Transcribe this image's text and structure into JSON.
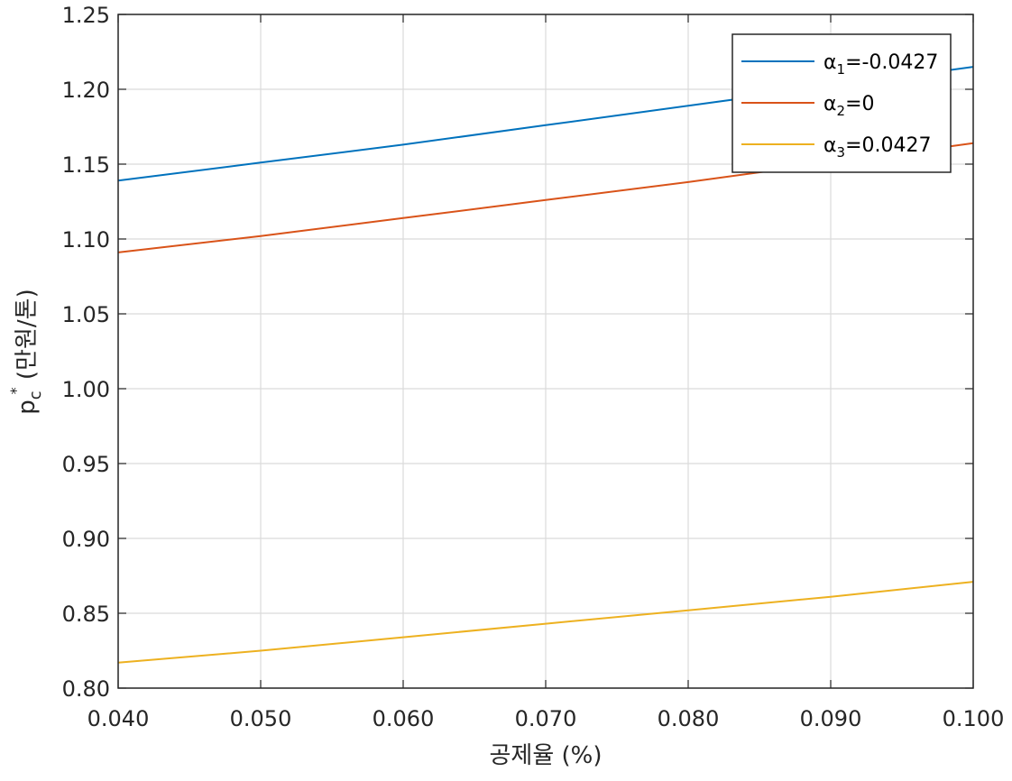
{
  "chart_data": {
    "type": "line",
    "xlabel": "공제율 (%)",
    "ylabel": {
      "main": "p",
      "sup": "*",
      "sub": "c",
      "unit": " (만원/톤)"
    },
    "xlim": [
      0.04,
      0.1
    ],
    "ylim": [
      0.8,
      1.25
    ],
    "xticks": [
      0.04,
      0.05,
      0.06,
      0.07,
      0.08,
      0.09,
      0.1
    ],
    "xtick_labels": [
      "0.040",
      "0.050",
      "0.060",
      "0.070",
      "0.080",
      "0.090",
      "0.100"
    ],
    "yticks": [
      0.8,
      0.85,
      0.9,
      0.95,
      1.0,
      1.05,
      1.1,
      1.15,
      1.2,
      1.25
    ],
    "ytick_labels": [
      "0.80",
      "0.85",
      "0.90",
      "0.95",
      "1.00",
      "1.05",
      "1.10",
      "1.15",
      "1.20",
      "1.25"
    ],
    "grid": true,
    "legend_position": "top-right",
    "series": [
      {
        "name": "α1=-0.0427",
        "name_parts": [
          "α",
          "1",
          "=-0.0427"
        ],
        "color": "#0072BD",
        "x": [
          0.04,
          0.05,
          0.06,
          0.07,
          0.08,
          0.09,
          0.1
        ],
        "y": [
          1.139,
          1.151,
          1.163,
          1.176,
          1.189,
          1.202,
          1.215
        ]
      },
      {
        "name": "α2=0",
        "name_parts": [
          "α",
          "2",
          "=0"
        ],
        "color": "#D95319",
        "x": [
          0.04,
          0.05,
          0.06,
          0.07,
          0.08,
          0.09,
          0.1
        ],
        "y": [
          1.091,
          1.102,
          1.114,
          1.126,
          1.138,
          1.151,
          1.164
        ]
      },
      {
        "name": "α3=0.0427",
        "name_parts": [
          "α",
          "3",
          "=0.0427"
        ],
        "color": "#EDB120",
        "x": [
          0.04,
          0.05,
          0.06,
          0.07,
          0.08,
          0.09,
          0.1
        ],
        "y": [
          0.817,
          0.825,
          0.834,
          0.843,
          0.852,
          0.861,
          0.871
        ]
      }
    ]
  }
}
